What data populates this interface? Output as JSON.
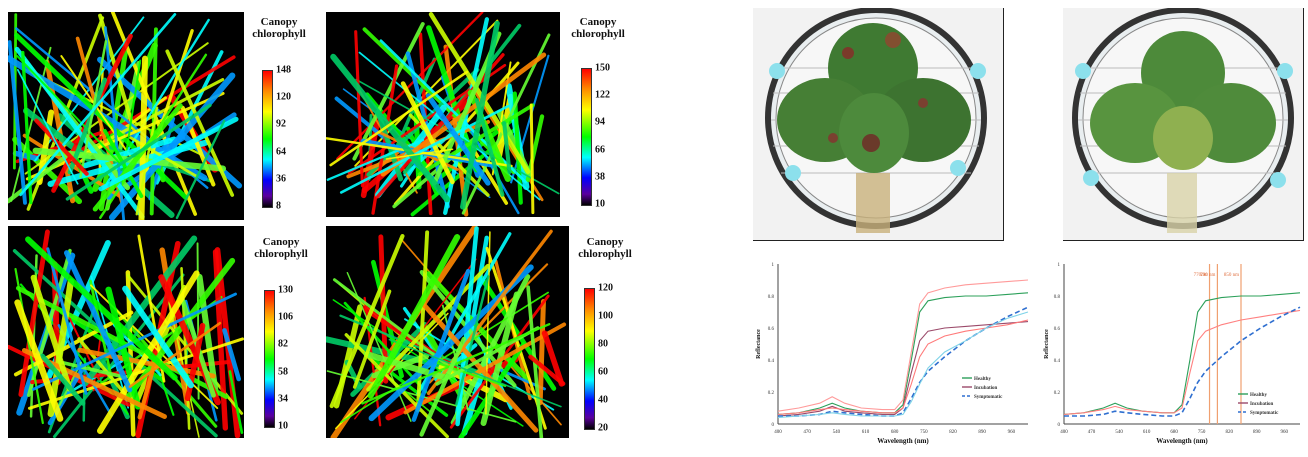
{
  "maps": [
    {
      "legend_title": "Canopy chlorophyll",
      "ticks": [
        "148",
        "120",
        "92",
        "64",
        "36",
        "8"
      ]
    },
    {
      "legend_title": "Canopy chlorophyll",
      "ticks": [
        "150",
        "122",
        "94",
        "66",
        "38",
        "10"
      ]
    },
    {
      "legend_title": "Canopy chlorophyll",
      "ticks": [
        "130",
        "106",
        "82",
        "58",
        "34",
        "10"
      ]
    },
    {
      "legend_title": "Canopy chlorophyll",
      "ticks": [
        "120",
        "100",
        "80",
        "60",
        "40",
        "20"
      ]
    }
  ],
  "chart_data": [
    {
      "type": "line",
      "xlabel": "Wavelength (nm)",
      "ylabel": "Reflectance",
      "xlim": [
        400,
        1000
      ],
      "ylim": [
        0,
        1
      ],
      "x_ticks": [
        "400",
        "470",
        "540",
        "610",
        "680",
        "750",
        "820",
        "890",
        "960"
      ],
      "y_ticks": [
        "0",
        "0.2",
        "0.4",
        "0.6",
        "0.8",
        "1"
      ],
      "legend": [
        "Healthy",
        "Incubation",
        "Symptomatic"
      ],
      "legend_position": "bottom-right",
      "x": [
        400,
        450,
        500,
        530,
        560,
        600,
        650,
        680,
        700,
        720,
        740,
        760,
        800,
        850,
        900,
        950,
        1000
      ],
      "series": [
        {
          "name": "Healthy",
          "color": "#2ca05a",
          "values": [
            0.06,
            0.07,
            0.1,
            0.13,
            0.1,
            0.08,
            0.07,
            0.07,
            0.12,
            0.4,
            0.7,
            0.77,
            0.79,
            0.8,
            0.8,
            0.81,
            0.82
          ]
        },
        {
          "name": "Healthy",
          "color": "#ff9a9a",
          "values": [
            0.08,
            0.1,
            0.13,
            0.17,
            0.13,
            0.1,
            0.09,
            0.09,
            0.15,
            0.45,
            0.75,
            0.82,
            0.85,
            0.87,
            0.88,
            0.89,
            0.9
          ]
        },
        {
          "name": "Incubation",
          "color": "#9b4a6a",
          "values": [
            0.05,
            0.06,
            0.08,
            0.11,
            0.08,
            0.07,
            0.06,
            0.06,
            0.1,
            0.32,
            0.52,
            0.58,
            0.6,
            0.61,
            0.62,
            0.63,
            0.64
          ]
        },
        {
          "name": "Incubation",
          "color": "#ff7a7a",
          "values": [
            0.06,
            0.07,
            0.09,
            0.1,
            0.09,
            0.08,
            0.07,
            0.07,
            0.1,
            0.25,
            0.42,
            0.5,
            0.55,
            0.58,
            0.6,
            0.62,
            0.65
          ]
        },
        {
          "name": "Symptomatic",
          "color": "#2f6fd0",
          "dashed": true,
          "values": [
            0.05,
            0.05,
            0.06,
            0.08,
            0.07,
            0.06,
            0.05,
            0.05,
            0.07,
            0.16,
            0.26,
            0.33,
            0.42,
            0.52,
            0.6,
            0.67,
            0.73
          ]
        },
        {
          "name": "Symptomatic",
          "color": "#7fd3e8",
          "values": [
            0.04,
            0.05,
            0.06,
            0.07,
            0.06,
            0.05,
            0.05,
            0.05,
            0.06,
            0.14,
            0.25,
            0.35,
            0.45,
            0.52,
            0.6,
            0.66,
            0.7
          ]
        }
      ]
    },
    {
      "type": "line",
      "xlabel": "Wavelength (nm)",
      "ylabel": "Reflectance",
      "xlim": [
        400,
        1000
      ],
      "ylim": [
        0,
        1
      ],
      "x_ticks": [
        "400",
        "470",
        "540",
        "610",
        "680",
        "750",
        "820",
        "890",
        "960"
      ],
      "y_ticks": [
        "0",
        "0.2",
        "0.4",
        "0.6",
        "0.8",
        "1"
      ],
      "legend": [
        "Healthy",
        "Incubation",
        "Symptomatic"
      ],
      "legend_position": "bottom-right",
      "annotations": [
        {
          "label": "770nm",
          "x": 770
        },
        {
          "label": "790 nm",
          "x": 790
        },
        {
          "label": "850 nm",
          "x": 850
        }
      ],
      "x": [
        400,
        450,
        500,
        530,
        560,
        600,
        650,
        680,
        700,
        720,
        740,
        760,
        800,
        850,
        900,
        950,
        1000
      ],
      "series": [
        {
          "name": "Healthy",
          "color": "#2ca05a",
          "values": [
            0.06,
            0.07,
            0.1,
            0.13,
            0.1,
            0.08,
            0.07,
            0.07,
            0.12,
            0.4,
            0.7,
            0.77,
            0.79,
            0.8,
            0.8,
            0.81,
            0.82
          ]
        },
        {
          "name": "Incubation",
          "color": "#ff8080",
          "values": [
            0.06,
            0.07,
            0.09,
            0.11,
            0.09,
            0.08,
            0.07,
            0.07,
            0.1,
            0.32,
            0.52,
            0.58,
            0.62,
            0.65,
            0.67,
            0.69,
            0.71
          ]
        },
        {
          "name": "Symptomatic",
          "color": "#2f6fd0",
          "dashed": true,
          "values": [
            0.05,
            0.05,
            0.06,
            0.08,
            0.07,
            0.06,
            0.05,
            0.05,
            0.07,
            0.16,
            0.26,
            0.33,
            0.42,
            0.52,
            0.6,
            0.67,
            0.73
          ]
        }
      ]
    }
  ]
}
